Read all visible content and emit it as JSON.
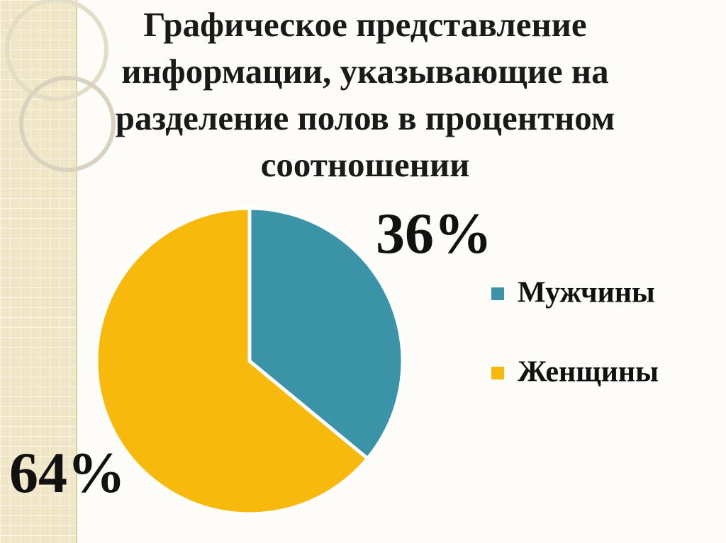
{
  "chart_data": {
    "type": "pie",
    "title": "Графическое представление информации, указывающие  на разделение  полов в процентном соотношении",
    "categories": [
      "Мужчины",
      "Женщины"
    ],
    "values": [
      36,
      64
    ],
    "value_labels": [
      "36%",
      "64%"
    ],
    "colors": [
      "#3b93a8",
      "#f7b90c"
    ],
    "legend": "right"
  }
}
